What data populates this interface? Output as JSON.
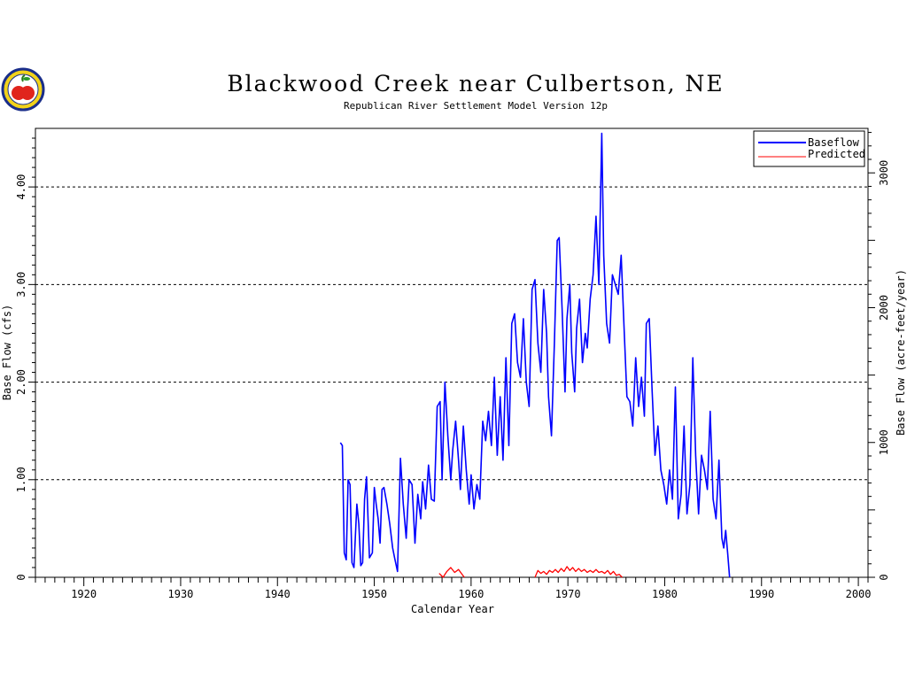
{
  "chart_data": {
    "type": "line",
    "title": "Blackwood Creek near Culbertson, NE",
    "subtitle": "Republican River Settlement Model Version 12p",
    "xlabel": "Calendar Year",
    "ylabel": "Base Flow (cfs)",
    "y2label": "Base Flow (acre-feet/year)",
    "xlim": [
      1915,
      2001
    ],
    "ylim": [
      0,
      4.6
    ],
    "y2lim": [
      0,
      3330
    ],
    "x_ticks": [
      "1920",
      "1930",
      "1940",
      "1950",
      "1960",
      "1970",
      "1980",
      "1990",
      "2000"
    ],
    "y_ticks": [
      "0",
      "1.00",
      "2.00",
      "3.00",
      "4.00"
    ],
    "y2_ticks": [
      "0",
      "1000",
      "2000",
      "3000"
    ],
    "grid": "horizontal dashed at y ticks",
    "legend_position": "top-right",
    "series": [
      {
        "name": "Baseflow",
        "color": "#0000ff",
        "x": [
          1946.5,
          1946.7,
          1946.9,
          1947.1,
          1947.3,
          1947.5,
          1947.7,
          1947.9,
          1948.2,
          1948.4,
          1948.6,
          1948.8,
          1949.0,
          1949.2,
          1949.5,
          1949.8,
          1950.0,
          1950.2,
          1950.4,
          1950.6,
          1950.8,
          1951.0,
          1951.3,
          1951.6,
          1951.9,
          1952.1,
          1952.4,
          1952.7,
          1953.0,
          1953.3,
          1953.6,
          1953.9,
          1954.2,
          1954.5,
          1954.8,
          1955.0,
          1955.3,
          1955.6,
          1955.9,
          1956.2,
          1956.5,
          1956.8,
          1957.0,
          1957.3,
          1957.6,
          1957.9,
          1958.1,
          1958.4,
          1958.7,
          1958.9,
          1959.2,
          1959.5,
          1959.8,
          1960.0,
          1960.3,
          1960.6,
          1960.9,
          1961.2,
          1961.5,
          1961.8,
          1962.1,
          1962.4,
          1962.7,
          1963.0,
          1963.3,
          1963.6,
          1963.9,
          1964.2,
          1964.5,
          1964.8,
          1965.1,
          1965.4,
          1965.7,
          1966.0,
          1966.3,
          1966.6,
          1966.9,
          1967.2,
          1967.5,
          1967.8,
          1968.0,
          1968.3,
          1968.6,
          1968.9,
          1969.1,
          1969.4,
          1969.7,
          1969.9,
          1970.2,
          1970.4,
          1970.7,
          1970.9,
          1971.2,
          1971.5,
          1971.8,
          1972.0,
          1972.3,
          1972.6,
          1972.9,
          1973.2,
          1973.5,
          1973.7,
          1974.0,
          1974.3,
          1974.6,
          1974.9,
          1975.2,
          1975.5,
          1975.8,
          1976.1,
          1976.4,
          1976.7,
          1977.0,
          1977.3,
          1977.6,
          1977.9,
          1978.1,
          1978.4,
          1978.7,
          1979.0,
          1979.3,
          1979.6,
          1979.9,
          1980.2,
          1980.5,
          1980.8,
          1981.1,
          1981.4,
          1981.7,
          1982.0,
          1982.3,
          1982.6,
          1982.9,
          1983.2,
          1983.5,
          1983.8,
          1984.1,
          1984.4,
          1984.7,
          1985.0,
          1985.3,
          1985.6,
          1985.9,
          1986.1,
          1986.3,
          1986.5,
          1986.7
        ],
        "y": [
          1.38,
          1.35,
          0.25,
          0.18,
          1.0,
          0.95,
          0.15,
          0.1,
          0.75,
          0.55,
          0.12,
          0.15,
          0.8,
          1.03,
          0.2,
          0.25,
          0.92,
          0.75,
          0.6,
          0.35,
          0.9,
          0.92,
          0.75,
          0.55,
          0.3,
          0.2,
          0.06,
          1.22,
          0.75,
          0.4,
          1.0,
          0.95,
          0.35,
          0.85,
          0.6,
          0.98,
          0.7,
          1.15,
          0.8,
          0.78,
          1.75,
          1.8,
          1.0,
          2.0,
          1.45,
          1.0,
          1.3,
          1.6,
          1.2,
          0.9,
          1.55,
          1.1,
          0.75,
          1.05,
          0.7,
          0.95,
          0.8,
          1.6,
          1.4,
          1.7,
          1.35,
          2.05,
          1.25,
          1.85,
          1.2,
          2.25,
          1.35,
          2.6,
          2.7,
          2.2,
          2.05,
          2.65,
          2.0,
          1.75,
          2.95,
          3.05,
          2.4,
          2.1,
          2.95,
          2.5,
          1.85,
          1.45,
          2.4,
          3.45,
          3.48,
          2.75,
          1.9,
          2.65,
          3.0,
          2.3,
          1.9,
          2.55,
          2.85,
          2.2,
          2.5,
          2.35,
          2.85,
          3.1,
          3.7,
          3.0,
          4.55,
          3.3,
          2.6,
          2.4,
          3.1,
          3.0,
          2.9,
          3.3,
          2.55,
          1.85,
          1.8,
          1.55,
          2.25,
          1.75,
          2.05,
          1.65,
          2.6,
          2.65,
          1.9,
          1.25,
          1.55,
          1.1,
          0.95,
          0.75,
          1.1,
          0.8,
          1.95,
          0.6,
          0.85,
          1.55,
          0.65,
          0.95,
          2.25,
          1.25,
          0.65,
          1.25,
          1.1,
          0.9,
          1.7,
          0.8,
          0.6,
          1.2,
          0.4,
          0.3,
          0.48,
          0.25,
          0.0
        ],
        "segments": [
          {
            "from": 1946.5,
            "to": 1986.7
          }
        ]
      },
      {
        "name": "Predicted",
        "color": "#ff0000",
        "x": [
          1956.7,
          1957.1,
          1957.5,
          1957.9,
          1958.3,
          1958.7,
          1959.0,
          1959.3,
          1966.6,
          1966.9,
          1967.2,
          1967.5,
          1967.8,
          1968.1,
          1968.4,
          1968.7,
          1969.0,
          1969.3,
          1969.6,
          1969.9,
          1970.2,
          1970.5,
          1970.8,
          1971.1,
          1971.4,
          1971.7,
          1972.0,
          1972.3,
          1972.6,
          1972.9,
          1973.2,
          1973.5,
          1973.8,
          1974.1,
          1974.4,
          1974.7,
          1975.0,
          1975.3,
          1975.6
        ],
        "y": [
          0.04,
          0.0,
          0.06,
          0.1,
          0.05,
          0.08,
          0.04,
          0.0,
          0.0,
          0.07,
          0.04,
          0.06,
          0.03,
          0.07,
          0.05,
          0.08,
          0.05,
          0.09,
          0.06,
          0.11,
          0.07,
          0.1,
          0.06,
          0.09,
          0.06,
          0.08,
          0.05,
          0.07,
          0.05,
          0.08,
          0.05,
          0.06,
          0.04,
          0.07,
          0.03,
          0.06,
          0.02,
          0.03,
          0.0
        ],
        "segments": [
          {
            "from": 1956.7,
            "to": 1959.3
          },
          {
            "from": 1966.6,
            "to": 1975.6
          }
        ]
      }
    ]
  }
}
